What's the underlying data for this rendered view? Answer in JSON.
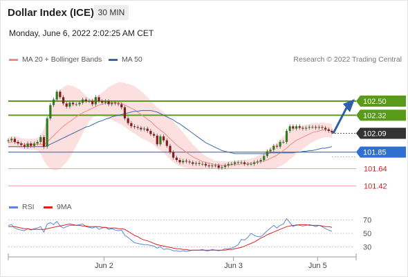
{
  "header": {
    "title": "Dollar Index (ICE)",
    "timeframe": "30 MIN",
    "datetime": "Monday, June 6, 2022 2:02:25 AM CET"
  },
  "legend": {
    "items": [
      {
        "label": "MA 20 + Bollinger Bands",
        "color": "#f08a8a"
      },
      {
        "label": "MA 50",
        "color": "#3a66a8"
      }
    ],
    "copyright": "Research © 2022 Trading Central"
  },
  "rsi_legend": {
    "items": [
      {
        "label": "RSI",
        "color": "#5b86d6"
      },
      {
        "label": "9MA",
        "color": "#dd2222"
      }
    ]
  },
  "colors": {
    "support_resistance": "#5a9a1a",
    "pivot": "#2f6fd0",
    "lower_level": "#f0a0a0",
    "candle_up": "#2f7a1c",
    "candle_down": "#8a1a1a",
    "bollinger_fill": "#fbd4d4",
    "arrow": "#2e5fa8",
    "last_price_box": "#333333"
  },
  "chart_data": [
    {
      "type": "candlestick",
      "symbol": "Dollar Index (ICE)",
      "interval": "30 MIN",
      "x_tick_labels": [
        "Jun 2",
        "Jun 3",
        "Jun 5"
      ],
      "ylim": [
        101.3,
        102.8
      ],
      "last_price": 102.09,
      "levels": [
        {
          "value": 102.5,
          "label": "102.50",
          "kind": "resistance"
        },
        {
          "value": 102.32,
          "label": "102.32",
          "kind": "resistance"
        },
        {
          "value": 101.85,
          "label": "101.85",
          "kind": "pivot"
        },
        {
          "value": 101.64,
          "label": "101.64",
          "kind": "support"
        },
        {
          "value": 101.42,
          "label": "101.42",
          "kind": "support"
        }
      ],
      "close": [
        102.0,
        102.02,
        101.98,
        101.96,
        101.94,
        101.92,
        101.96,
        101.93,
        101.96,
        101.98,
        102.04,
        101.92,
        102.28,
        102.45,
        102.52,
        102.62,
        102.55,
        102.47,
        102.43,
        102.48,
        102.46,
        102.46,
        102.48,
        102.52,
        102.5,
        102.5,
        102.46,
        102.55,
        102.5,
        102.48,
        102.5,
        102.46,
        102.48,
        102.47,
        102.46,
        102.42,
        102.28,
        102.22,
        102.18,
        102.17,
        102.16,
        102.14,
        102.15,
        102.12,
        102.08,
        102.06,
        101.95,
        102.05,
        102.0,
        101.93,
        101.85,
        101.78,
        101.75,
        101.72,
        101.74,
        101.73,
        101.72,
        101.7,
        101.71,
        101.7,
        101.7,
        101.68,
        101.67,
        101.68,
        101.68,
        101.65,
        101.66,
        101.68,
        101.7,
        101.7,
        101.72,
        101.72,
        101.72,
        101.7,
        101.7,
        101.7,
        101.72,
        101.73,
        101.75,
        101.8,
        101.86,
        101.88,
        101.93,
        101.92,
        101.98,
        101.98,
        102.12,
        102.18,
        102.15,
        102.18,
        102.16,
        102.15,
        102.16,
        102.17,
        102.17,
        102.16,
        102.17,
        102.16,
        102.14,
        102.12,
        102.1
      ],
      "ma20": [
        101.97,
        101.98,
        101.98,
        101.97,
        101.96,
        101.95,
        101.95,
        101.95,
        101.95,
        101.95,
        101.95,
        101.94,
        101.98,
        102.02,
        102.06,
        102.1,
        102.14,
        102.18,
        102.21,
        102.24,
        102.27,
        102.3,
        102.33,
        102.35,
        102.37,
        102.39,
        102.41,
        102.43,
        102.45,
        102.46,
        102.47,
        102.48,
        102.48,
        102.48,
        102.48,
        102.47,
        102.45,
        102.43,
        102.41,
        102.39,
        102.36,
        102.33,
        102.3,
        102.27,
        102.24,
        102.2,
        102.16,
        102.13,
        102.1,
        102.06,
        102.02,
        101.98,
        101.94,
        101.91,
        101.88,
        101.85,
        101.82,
        101.79,
        101.77,
        101.75,
        101.73,
        101.72,
        101.71,
        101.7,
        101.69,
        101.69,
        101.68,
        101.68,
        101.68,
        101.69,
        101.69,
        101.69,
        101.7,
        101.7,
        101.7,
        101.71,
        101.71,
        101.72,
        101.73,
        101.74,
        101.75,
        101.77,
        101.79,
        101.81,
        101.84,
        101.87,
        101.9,
        101.94,
        101.97,
        102.0,
        102.02,
        102.04,
        102.06,
        102.08,
        102.1,
        102.11,
        102.12,
        102.13,
        102.13,
        102.13,
        102.12
      ],
      "ma50": [
        101.92,
        101.92,
        101.92,
        101.92,
        101.92,
        101.92,
        101.92,
        101.92,
        101.92,
        101.92,
        101.92,
        101.92,
        101.93,
        101.95,
        101.97,
        101.99,
        102.01,
        102.03,
        102.05,
        102.07,
        102.09,
        102.11,
        102.13,
        102.15,
        102.17,
        102.18,
        102.2,
        102.22,
        102.24,
        102.25,
        102.27,
        102.28,
        102.3,
        102.31,
        102.32,
        102.33,
        102.34,
        102.35,
        102.36,
        102.37,
        102.37,
        102.38,
        102.38,
        102.38,
        102.38,
        102.37,
        102.36,
        102.34,
        102.32,
        102.3,
        102.28,
        102.26,
        102.23,
        102.21,
        102.18,
        102.15,
        102.12,
        102.09,
        102.06,
        102.03,
        102.0,
        101.97,
        101.95,
        101.93,
        101.91,
        101.89,
        101.87,
        101.86,
        101.85,
        101.84,
        101.83,
        101.83,
        101.83,
        101.83,
        101.83,
        101.83,
        101.83,
        101.83,
        101.83,
        101.83,
        101.83,
        101.84,
        101.84,
        101.84,
        101.84,
        101.84,
        101.84,
        101.84,
        101.84,
        101.85,
        101.85,
        101.86,
        101.86,
        101.87,
        101.87,
        101.88,
        101.89,
        101.9,
        101.9,
        101.91,
        101.92
      ],
      "bb_width": [
        0.07,
        0.07,
        0.07,
        0.07,
        0.07,
        0.07,
        0.07,
        0.07,
        0.07,
        0.08,
        0.12,
        0.2,
        0.3,
        0.38,
        0.44,
        0.48,
        0.5,
        0.5,
        0.49,
        0.46,
        0.42,
        0.37,
        0.32,
        0.26,
        0.2,
        0.15,
        0.12,
        0.12,
        0.13,
        0.15,
        0.17,
        0.2,
        0.22,
        0.24,
        0.26,
        0.27,
        0.28,
        0.29,
        0.3,
        0.3,
        0.3,
        0.3,
        0.29,
        0.28,
        0.27,
        0.26,
        0.26,
        0.26,
        0.26,
        0.26,
        0.26,
        0.26,
        0.25,
        0.24,
        0.22,
        0.2,
        0.18,
        0.16,
        0.14,
        0.12,
        0.1,
        0.08,
        0.07,
        0.06,
        0.05,
        0.05,
        0.05,
        0.05,
        0.05,
        0.05,
        0.05,
        0.05,
        0.05,
        0.05,
        0.06,
        0.06,
        0.07,
        0.08,
        0.09,
        0.1,
        0.12,
        0.14,
        0.15,
        0.16,
        0.17,
        0.18,
        0.18,
        0.18,
        0.18,
        0.17,
        0.16,
        0.15,
        0.14,
        0.13,
        0.12,
        0.11,
        0.1,
        0.1,
        0.09,
        0.09,
        0.09
      ],
      "projection": {
        "from": 102.09,
        "to": 102.5
      }
    },
    {
      "type": "line",
      "title": "RSI",
      "ylim": [
        20,
        80
      ],
      "y_tick_labels": [
        "70",
        "50",
        "30"
      ],
      "reference_levels": [
        70,
        50,
        30
      ],
      "series": [
        {
          "name": "RSI",
          "color": "#5b86d6",
          "values": [
            62,
            63,
            58,
            56,
            55,
            54,
            57,
            55,
            57,
            58,
            60,
            52,
            64,
            66,
            63,
            68,
            61,
            58,
            60,
            62,
            62,
            62,
            63,
            64,
            60,
            59,
            58,
            60,
            56,
            58,
            59,
            56,
            57,
            55,
            54,
            55,
            47,
            44,
            40,
            36,
            35,
            34,
            33,
            33,
            32,
            31,
            28,
            30,
            26,
            27,
            26,
            24,
            24,
            23,
            24,
            23,
            24,
            25,
            25,
            25,
            26,
            24,
            24,
            26,
            25,
            24,
            25,
            27,
            27,
            28,
            30,
            33,
            41,
            40,
            44,
            50,
            47,
            45,
            45,
            49,
            54,
            58,
            62,
            58,
            62,
            64,
            72,
            66,
            60,
            63,
            62,
            61,
            62,
            63,
            62,
            60,
            62,
            60,
            57,
            55,
            53
          ]
        },
        {
          "name": "9MA",
          "color": "#dd2222",
          "values": [
            60,
            60,
            60,
            59,
            58,
            57,
            57,
            56,
            56,
            56,
            56,
            56,
            57,
            58,
            59,
            60,
            61,
            62,
            63,
            64,
            63,
            62,
            62,
            61,
            61,
            60,
            60,
            60,
            60,
            59,
            59,
            58,
            58,
            58,
            57,
            57,
            56,
            53,
            50,
            47,
            45,
            42,
            40,
            39,
            37,
            35,
            33,
            32,
            31,
            30,
            29,
            28,
            27,
            27,
            26,
            26,
            25,
            25,
            25,
            25,
            25,
            25,
            25,
            25,
            25,
            25,
            25,
            25,
            26,
            26,
            27,
            28,
            29,
            31,
            33,
            35,
            37,
            40,
            43,
            45,
            48,
            50,
            52,
            54,
            56,
            58,
            60,
            61,
            62,
            62,
            63,
            63,
            63,
            62,
            62,
            62,
            62,
            61,
            60,
            60,
            59
          ]
        }
      ]
    }
  ]
}
